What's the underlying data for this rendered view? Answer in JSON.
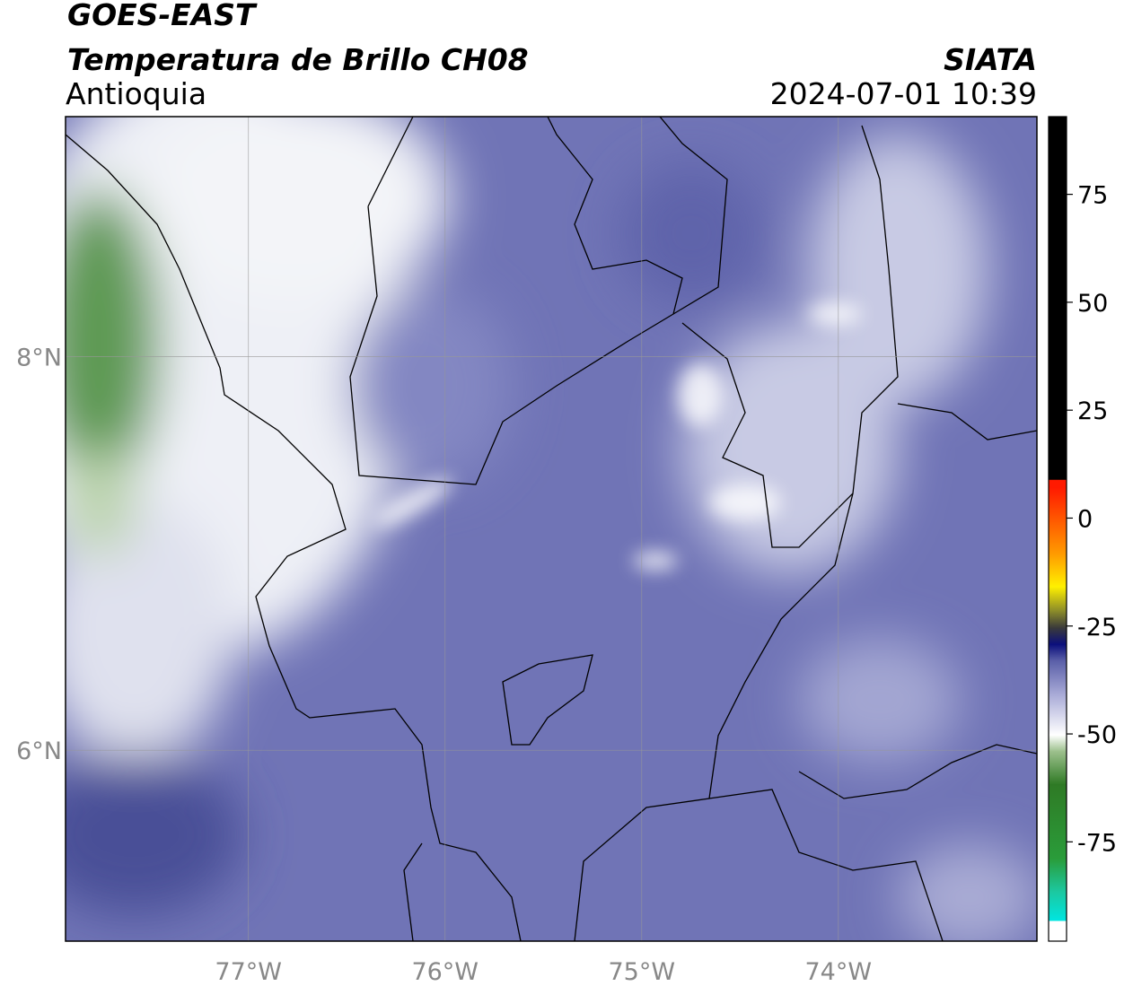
{
  "header": {
    "title": "GOES-EAST",
    "subtitle": "Temperatura de Brillo CH08",
    "region": "Antioquia",
    "source": "SIATA",
    "timestamp": "2024-07-01 10:39"
  },
  "map": {
    "xlim": [
      -77.93,
      -72.99
    ],
    "ylim": [
      5.03,
      9.22
    ],
    "xticks": [
      {
        "value": -77,
        "label": "77°W"
      },
      {
        "value": -76,
        "label": "76°W"
      },
      {
        "value": -75,
        "label": "75°W"
      },
      {
        "value": -74,
        "label": "74°W"
      }
    ],
    "yticks": [
      {
        "value": 6,
        "label": "6°N"
      },
      {
        "value": 8,
        "label": "8°N"
      }
    ]
  },
  "colorbar": {
    "lim": [
      -98,
      93
    ],
    "ticks": [
      -75,
      -50,
      -25,
      0,
      25,
      50,
      75
    ]
  }
}
